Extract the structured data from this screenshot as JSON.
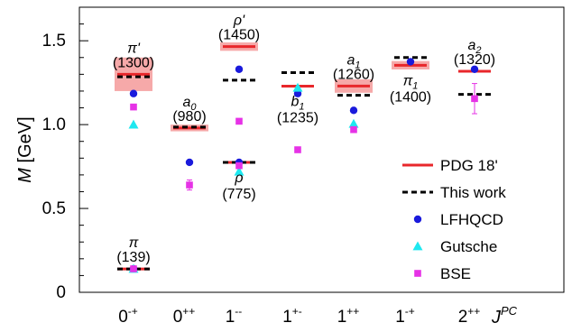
{
  "chart_data": {
    "type": "scatter",
    "ylabel": "M [GeV]",
    "xlabel": "J^PC",
    "ylim": [
      0,
      1.7
    ],
    "yticks": [
      "0",
      "0.5",
      "1.0",
      "1.5"
    ],
    "categories": [
      "0-+",
      "0++",
      "1--",
      "1+-",
      "1++",
      "1-+",
      "2++"
    ],
    "category_labels": [
      {
        "base": "0",
        "sup": "-+"
      },
      {
        "base": "0",
        "sup": "++"
      },
      {
        "base": "1",
        "sup": "--"
      },
      {
        "base": "1",
        "sup": "+-"
      },
      {
        "base": "1",
        "sup": "++"
      },
      {
        "base": "1",
        "sup": "-+"
      },
      {
        "base": "2",
        "sup": "++"
      }
    ],
    "pdg": [
      {
        "cat": 0,
        "mass": 0.139,
        "err": 0
      },
      {
        "cat": 0,
        "mass": 1.3,
        "err": 0.1
      },
      {
        "cat": 1,
        "mass": 0.98,
        "err": 0.02
      },
      {
        "cat": 2,
        "mass": 0.775,
        "err": 0.001
      },
      {
        "cat": 2,
        "mass": 1.465,
        "err": 0.025
      },
      {
        "cat": 3,
        "mass": 1.229,
        "err": 0.003
      },
      {
        "cat": 4,
        "mass": 1.23,
        "err": 0.04
      },
      {
        "cat": 5,
        "mass": 1.354,
        "err": 0.025
      },
      {
        "cat": 6,
        "mass": 1.318,
        "err": 0.001
      }
    ],
    "this_work": [
      {
        "cat": 0,
        "mass": 0.139
      },
      {
        "cat": 0,
        "mass": 1.285
      },
      {
        "cat": 1,
        "mass": 0.985
      },
      {
        "cat": 2,
        "mass": 0.775
      },
      {
        "cat": 2,
        "mass": 1.265
      },
      {
        "cat": 3,
        "mass": 1.31
      },
      {
        "cat": 4,
        "mass": 1.175
      },
      {
        "cat": 5,
        "mass": 1.4
      },
      {
        "cat": 6,
        "mass": 1.18
      }
    ],
    "lfhqcd": [
      {
        "cat": 0,
        "mass": 0.14
      },
      {
        "cat": 0,
        "mass": 1.185
      },
      {
        "cat": 1,
        "mass": 0.775
      },
      {
        "cat": 2,
        "mass": 0.775
      },
      {
        "cat": 2,
        "mass": 1.33
      },
      {
        "cat": 3,
        "mass": 1.185
      },
      {
        "cat": 4,
        "mass": 1.085
      },
      {
        "cat": 5,
        "mass": 1.375
      },
      {
        "cat": 6,
        "mass": 1.33
      }
    ],
    "gutsche": [
      {
        "cat": 0,
        "mass": 0.14
      },
      {
        "cat": 0,
        "mass": 1.0
      },
      {
        "cat": 2,
        "mass": 0.72
      },
      {
        "cat": 3,
        "mass": 1.22
      },
      {
        "cat": 4,
        "mass": 1.005
      }
    ],
    "bse": [
      {
        "cat": 0,
        "mass": 0.14,
        "err": 0
      },
      {
        "cat": 0,
        "mass": 1.105,
        "err": 0
      },
      {
        "cat": 1,
        "mass": 0.64,
        "err": 0.03
      },
      {
        "cat": 2,
        "mass": 0.755,
        "err": 0
      },
      {
        "cat": 2,
        "mass": 1.02,
        "err": 0
      },
      {
        "cat": 3,
        "mass": 0.85,
        "err": 0
      },
      {
        "cat": 4,
        "mass": 0.97,
        "err": 0
      },
      {
        "cat": 6,
        "mass": 1.155,
        "err": 0.09
      }
    ],
    "annotations": [
      {
        "cat": 0,
        "mass": 1.3,
        "pos": "above",
        "sym": "π",
        "prime": "'",
        "sub": "",
        "value": "(1300)"
      },
      {
        "cat": 0,
        "mass": 0.14,
        "pos": "above",
        "sym": "π",
        "prime": "",
        "sub": "",
        "value": "(139)"
      },
      {
        "cat": 1,
        "mass": 0.98,
        "pos": "above",
        "sym": "a",
        "prime": "",
        "sub": "0",
        "value": "(980)"
      },
      {
        "cat": 2,
        "mass": 1.465,
        "pos": "above",
        "sym": "ρ",
        "prime": "'",
        "sub": "",
        "value": "(1450)"
      },
      {
        "cat": 2,
        "mass": 0.775,
        "pos": "below",
        "sym": "ρ",
        "prime": "",
        "sub": "",
        "value": "(775)"
      },
      {
        "cat": 3,
        "mass": 1.229,
        "pos": "below",
        "sym": "b",
        "prime": "",
        "sub": "1",
        "value": "(1235)"
      },
      {
        "cat": 4,
        "mass": 1.23,
        "pos": "above",
        "sym": "a",
        "prime": "",
        "sub": "1",
        "value": "(1260)"
      },
      {
        "cat": 5,
        "mass": 1.354,
        "pos": "below",
        "sym": "π",
        "prime": "",
        "sub": "1",
        "value": "(1400)"
      },
      {
        "cat": 6,
        "mass": 1.318,
        "pos": "above",
        "sym": "a",
        "prime": "",
        "sub": "2",
        "value": "(1320)"
      }
    ],
    "legend": {
      "position": "bottom-right",
      "entries": [
        {
          "key": "pdg",
          "label": "PDG 18'"
        },
        {
          "key": "this_work",
          "label": "This work"
        },
        {
          "key": "lfhqcd",
          "label": "LFHQCD"
        },
        {
          "key": "gutsche",
          "label": "Gutsche"
        },
        {
          "key": "bse",
          "label": "BSE"
        }
      ]
    },
    "colors": {
      "pdg": "#e8272b",
      "pdg_band": "#f49a9a",
      "this_work": "#000000",
      "lfhqcd": "#1a1adc",
      "gutsche": "#1ee8f0",
      "bse": "#e632e6"
    }
  }
}
